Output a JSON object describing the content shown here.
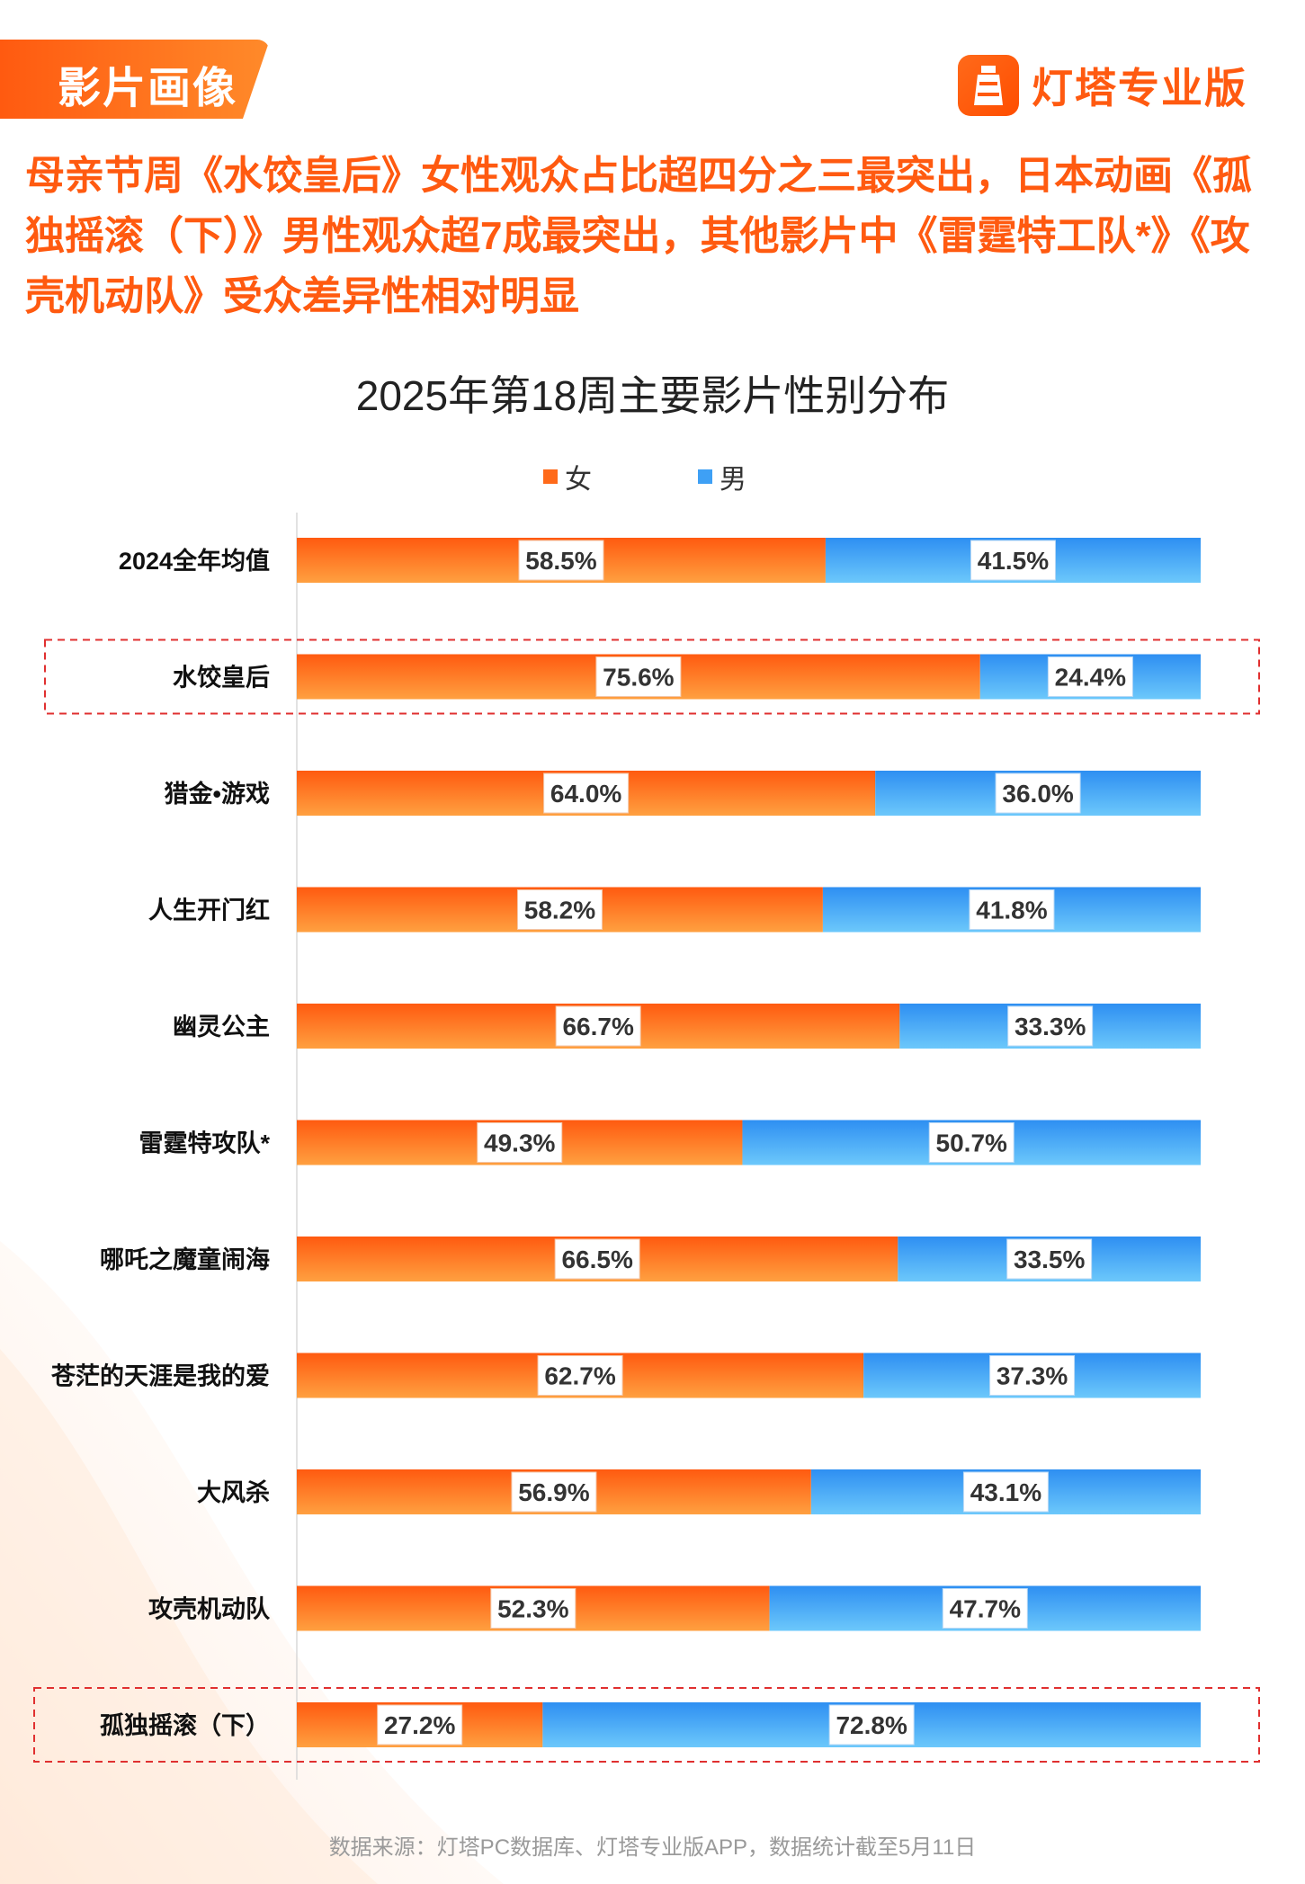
{
  "section_tag": "影片画像",
  "brand": {
    "name": "灯塔专业版"
  },
  "headline": "母亲节周《水饺皇后》女性观众占比超四分之三最突出，日本动画《孤独摇滚（下）》男性观众超7成最突出，其他影片中《雷霆特工队*》《攻壳机动队》受众差异性相对明显",
  "footer": "数据来源：灯塔PC数据库、灯塔专业版APP，数据统计截至5月11日",
  "colors": {
    "female": "#ff6a1a",
    "male": "#3ea0f5",
    "highlight": "#e03030",
    "accent": "#ff5a10"
  },
  "chart_data": {
    "type": "bar",
    "stacked": true,
    "orientation": "horizontal",
    "title": "2025年第18周主要影片性别分布",
    "legend": [
      "女",
      "男"
    ],
    "legend_position": "top",
    "categories": [
      "2024全年均值",
      "水饺皇后",
      "猎金•游戏",
      "人生开门红",
      "幽灵公主",
      "雷霆特攻队*",
      "哪吒之魔童闹海",
      "苍茫的天涯是我的爱",
      "大风杀",
      "攻壳机动队",
      "孤独摇滚（下）"
    ],
    "series": [
      {
        "name": "女",
        "values": [
          58.5,
          75.6,
          64.0,
          58.2,
          66.7,
          49.3,
          66.5,
          62.7,
          56.9,
          52.3,
          27.2
        ],
        "labels": [
          "58.5%",
          "75.6%",
          "64.0%",
          "58.2%",
          "66.7%",
          "49.3%",
          "66.5%",
          "62.7%",
          "56.9%",
          "52.3%",
          "27.2%"
        ]
      },
      {
        "name": "男",
        "values": [
          41.5,
          24.4,
          36.0,
          41.8,
          33.3,
          50.7,
          33.5,
          37.3,
          43.1,
          47.7,
          72.8
        ],
        "labels": [
          "41.5%",
          "24.4%",
          "36.0%",
          "41.8%",
          "33.3%",
          "50.7%",
          "33.5%",
          "37.3%",
          "43.1%",
          "47.7%",
          "72.8%"
        ]
      }
    ],
    "xlim": [
      0,
      100
    ],
    "grid": false,
    "highlighted": [
      "水饺皇后",
      "孤独摇滚（下）"
    ]
  }
}
